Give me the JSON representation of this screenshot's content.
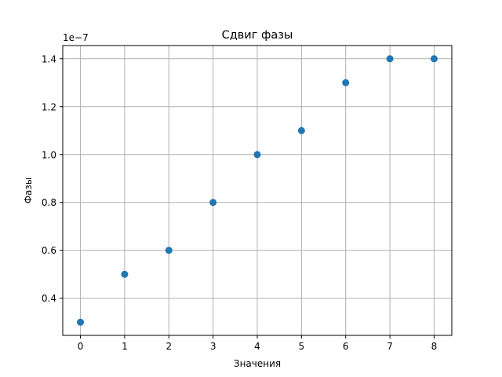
{
  "chart_data": {
    "type": "scatter",
    "title": "Сдвиг фазы",
    "xlabel": "Значения",
    "ylabel": "Фазы",
    "offset_label": "1e−7",
    "x": [
      0,
      1,
      2,
      3,
      4,
      5,
      6,
      7,
      8
    ],
    "y": [
      0.3,
      0.5,
      0.6,
      0.8,
      1.0,
      1.1,
      1.3,
      1.4,
      1.4
    ],
    "y_scale_exponent": -7,
    "xlim": [
      -0.4,
      8.4
    ],
    "ylim": [
      0.245,
      1.455
    ],
    "x_ticks": [
      0,
      1,
      2,
      3,
      4,
      5,
      6,
      7,
      8
    ],
    "x_tick_labels": [
      "0",
      "1",
      "2",
      "3",
      "4",
      "5",
      "6",
      "7",
      "8"
    ],
    "y_ticks": [
      0.4,
      0.6,
      0.8,
      1.0,
      1.2,
      1.4
    ],
    "y_tick_labels": [
      "0.4",
      "0.6",
      "0.8",
      "1.0",
      "1.2",
      "1.4"
    ],
    "grid": true,
    "color": "#1f77b4"
  }
}
